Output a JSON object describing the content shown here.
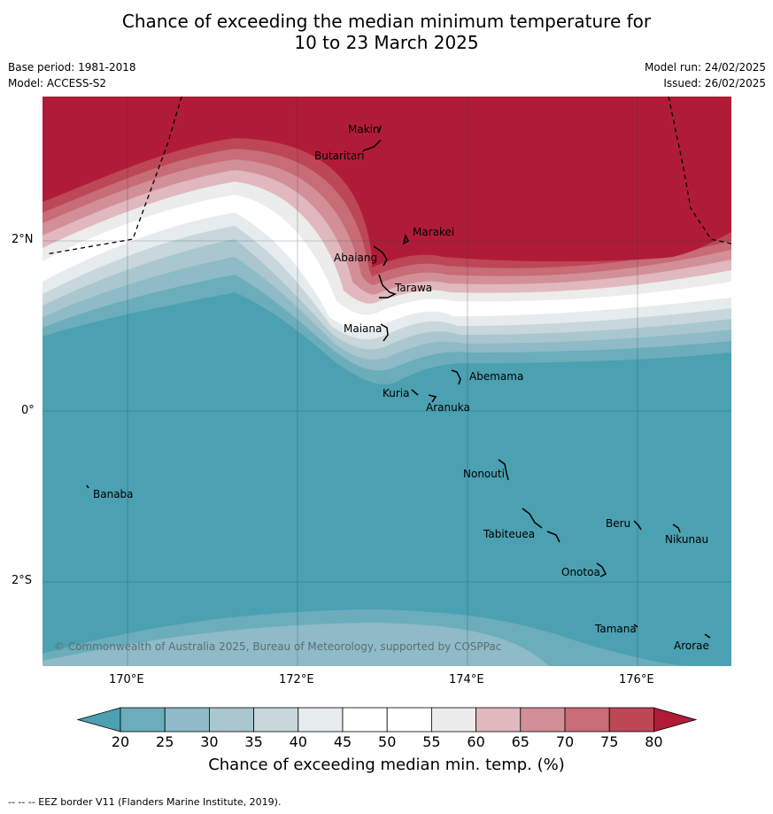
{
  "title_line1": "Chance of exceeding the median minimum temperature for",
  "title_line2": "10 to 23 March 2025",
  "meta_left": [
    "Base period: 1981-2018",
    "Model: ACCESS-S2"
  ],
  "meta_right": [
    "Model run: 24/02/2025",
    "Issued: 26/02/2025"
  ],
  "lat_labels": [
    "2°N",
    "0°",
    "2°S"
  ],
  "lon_labels": [
    "170°E",
    "172°E",
    "174°E",
    "176°E"
  ],
  "places": [
    "Makin",
    "Butaritari",
    "Marakei",
    "Abaiang",
    "Tarawa",
    "Maiana",
    "Abemama",
    "Kuria",
    "Aranuka",
    "Nonouti",
    "Banaba",
    "Beru",
    "Nikunau",
    "Tabiteuea",
    "Onotoa",
    "Tamana",
    "Arorae"
  ],
  "copyright": "© Commonwealth of Australia 2025, Bureau of Meteorology, supported by COSPPac",
  "colorbar": {
    "ticks": [
      "20",
      "25",
      "30",
      "35",
      "40",
      "45",
      "50",
      "55",
      "60",
      "65",
      "70",
      "75",
      "80"
    ],
    "colors": [
      "#6cadbb",
      "#8ebbc7",
      "#aac7cf",
      "#c8d7dc",
      "#e6ecee",
      "#ffffff",
      "#ffffff",
      "#ececec",
      "#e0b8be",
      "#d28f97",
      "#c86c76",
      "#bd4756"
    ],
    "under_color": "#4ba0b1",
    "over_color": "#b01c38",
    "label": "Chance of exceeding median min. temp. (%)"
  },
  "footer": "--  --  -- EEZ border V11 (Flanders Marine Institute, 2019)."
}
